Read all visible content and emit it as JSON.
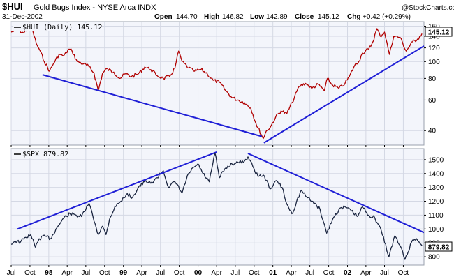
{
  "header": {
    "symbol": "$HUI",
    "name": "Gold Bugs Index - NYSE Arca INDX",
    "date": "31-Dec-2002",
    "copyright": "@StockCharts.com",
    "quote": {
      "open_label": "Open",
      "open": "144.70",
      "high_label": "High",
      "high": "146.82",
      "low_label": "Low",
      "low": "142.89",
      "close_label": "Close",
      "close": "145.12",
      "chg_label": "Chg",
      "chg": "+0.42 (+0.29%)"
    }
  },
  "colors": {
    "background": "#ffffff",
    "plot_bg": "#f3f5fb",
    "grid": "#d4d8e4",
    "hui_line": "#b00000",
    "spx_line": "#1a2540",
    "trendline": "#1f1fd6"
  },
  "chart_data": [
    {
      "type": "line",
      "panel": "top",
      "legend": "$HUI (Daily) 145.12",
      "last_value_label": "145.12",
      "y_scale": "log",
      "ylim": [
        33,
        170
      ],
      "y_ticks": [
        40,
        60,
        80,
        100,
        120,
        140,
        160
      ],
      "x_range": [
        "1997-07-01",
        "2003-01-10"
      ],
      "series": [
        {
          "values": [
            [
              "1997-07-01",
              148
            ],
            [
              "1997-08-01",
              152
            ],
            [
              "1997-09-01",
              146
            ],
            [
              "1997-09-20",
              155
            ],
            [
              "1997-10-15",
              150
            ],
            [
              "1997-11-01",
              127
            ],
            [
              "1997-11-20",
              115
            ],
            [
              "1997-12-10",
              100
            ],
            [
              "1998-01-05",
              88
            ],
            [
              "1998-01-25",
              98
            ],
            [
              "1998-02-20",
              110
            ],
            [
              "1998-03-15",
              108
            ],
            [
              "1998-04-10",
              118
            ],
            [
              "1998-04-25",
              115
            ],
            [
              "1998-05-20",
              100
            ],
            [
              "1998-06-20",
              97
            ],
            [
              "1998-07-15",
              94
            ],
            [
              "1998-08-10",
              86
            ],
            [
              "1998-08-31",
              68
            ],
            [
              "1998-09-20",
              85
            ],
            [
              "1998-10-10",
              91
            ],
            [
              "1998-11-15",
              87
            ],
            [
              "1998-12-15",
              80
            ],
            [
              "1999-01-10",
              85
            ],
            [
              "1999-02-10",
              82
            ],
            [
              "1999-03-15",
              85
            ],
            [
              "1999-04-15",
              93
            ],
            [
              "1999-05-15",
              90
            ],
            [
              "1999-06-15",
              83
            ],
            [
              "1999-07-15",
              80
            ],
            [
              "1999-08-15",
              82
            ],
            [
              "1999-09-10",
              92
            ],
            [
              "1999-09-28",
              115
            ],
            [
              "1999-10-15",
              100
            ],
            [
              "1999-11-15",
              92
            ],
            [
              "1999-12-15",
              88
            ],
            [
              "2000-01-15",
              90
            ],
            [
              "2000-02-15",
              85
            ],
            [
              "2000-03-15",
              78
            ],
            [
              "2000-04-15",
              76
            ],
            [
              "2000-05-15",
              68
            ],
            [
              "2000-06-15",
              62
            ],
            [
              "2000-07-15",
              60
            ],
            [
              "2000-08-15",
              58
            ],
            [
              "2000-09-15",
              54
            ],
            [
              "2000-10-10",
              44
            ],
            [
              "2000-11-05",
              38
            ],
            [
              "2000-11-15",
              36
            ],
            [
              "2000-12-01",
              40
            ],
            [
              "2000-12-20",
              42
            ],
            [
              "2001-01-15",
              48
            ],
            [
              "2001-02-10",
              52
            ],
            [
              "2001-03-10",
              50
            ],
            [
              "2001-04-05",
              58
            ],
            [
              "2001-05-10",
              72
            ],
            [
              "2001-06-10",
              75
            ],
            [
              "2001-07-10",
              70
            ],
            [
              "2001-08-10",
              74
            ],
            [
              "2001-09-10",
              68
            ],
            [
              "2001-09-25",
              80
            ],
            [
              "2001-10-15",
              74
            ],
            [
              "2001-11-20",
              70
            ],
            [
              "2001-12-20",
              75
            ],
            [
              "2002-01-10",
              82
            ],
            [
              "2002-02-05",
              95
            ],
            [
              "2002-02-25",
              100
            ],
            [
              "2002-03-15",
              112
            ],
            [
              "2002-04-15",
              118
            ],
            [
              "2002-05-05",
              130
            ],
            [
              "2002-05-25",
              155
            ],
            [
              "2002-06-10",
              140
            ],
            [
              "2002-07-01",
              148
            ],
            [
              "2002-07-25",
              110
            ],
            [
              "2002-08-15",
              140
            ],
            [
              "2002-09-15",
              138
            ],
            [
              "2002-10-15",
              115
            ],
            [
              "2002-11-15",
              130
            ],
            [
              "2002-12-10",
              135
            ],
            [
              "2002-12-31",
              145
            ]
          ]
        }
      ],
      "trendlines": [
        {
          "from": [
            "1997-12-01",
            84
          ],
          "to": [
            "2000-11-08",
            37
          ]
        },
        {
          "from": [
            "2000-11-18",
            34
          ],
          "to": [
            "2003-01-10",
            123
          ]
        }
      ]
    },
    {
      "type": "line",
      "panel": "bottom",
      "legend": "$SPX 879.82",
      "last_value_label": "879.82",
      "y_scale": "linear",
      "ylim": [
        740,
        1580
      ],
      "y_ticks": [
        800,
        900,
        1000,
        1100,
        1200,
        1300,
        1400,
        1500
      ],
      "x_range": [
        "1997-07-01",
        "2003-01-10"
      ],
      "x_ticks": [
        "Jul",
        "Oct",
        "98",
        "Apr",
        "Jul",
        "Oct",
        "99",
        "Apr",
        "Jul",
        "Oct",
        "00",
        "Apr",
        "Jul",
        "Oct",
        "01",
        "Apr",
        "Jul",
        "Oct",
        "02",
        "Apr",
        "Jul",
        "Oct"
      ],
      "series": [
        {
          "values": [
            [
              "1997-07-01",
              890
            ],
            [
              "1997-07-20",
              915
            ],
            [
              "1997-08-15",
              905
            ],
            [
              "1997-09-10",
              940
            ],
            [
              "1997-10-05",
              960
            ],
            [
              "1997-10-27",
              870
            ],
            [
              "1997-11-15",
              930
            ],
            [
              "1997-12-15",
              950
            ],
            [
              "1998-01-09",
              930
            ],
            [
              "1998-02-10",
              1010
            ],
            [
              "1998-03-15",
              1080
            ],
            [
              "1998-04-15",
              1110
            ],
            [
              "1998-05-15",
              1100
            ],
            [
              "1998-06-10",
              1090
            ],
            [
              "1998-07-17",
              1185
            ],
            [
              "1998-08-05",
              1090
            ],
            [
              "1998-08-31",
              960
            ],
            [
              "1998-09-20",
              1020
            ],
            [
              "1998-10-08",
              960
            ],
            [
              "1998-10-25",
              1070
            ],
            [
              "1998-11-20",
              1160
            ],
            [
              "1998-12-20",
              1200
            ],
            [
              "1999-01-15",
              1250
            ],
            [
              "1999-02-15",
              1230
            ],
            [
              "1999-03-15",
              1300
            ],
            [
              "1999-04-15",
              1340
            ],
            [
              "1999-05-15",
              1330
            ],
            [
              "1999-06-15",
              1370
            ],
            [
              "1999-07-15",
              1420
            ],
            [
              "1999-08-10",
              1300
            ],
            [
              "1999-09-10",
              1340
            ],
            [
              "1999-10-15",
              1260
            ],
            [
              "1999-11-15",
              1400
            ],
            [
              "1999-12-31",
              1470
            ],
            [
              "2000-01-25",
              1400
            ],
            [
              "2000-02-25",
              1340
            ],
            [
              "2000-03-24",
              1550
            ],
            [
              "2000-04-14",
              1370
            ],
            [
              "2000-05-15",
              1440
            ],
            [
              "2000-06-15",
              1470
            ],
            [
              "2000-07-15",
              1480
            ],
            [
              "2000-08-15",
              1490
            ],
            [
              "2000-09-01",
              1520
            ],
            [
              "2000-09-25",
              1450
            ],
            [
              "2000-10-20",
              1380
            ],
            [
              "2000-11-15",
              1390
            ],
            [
              "2000-12-20",
              1290
            ],
            [
              "2001-01-20",
              1350
            ],
            [
              "2001-02-15",
              1300
            ],
            [
              "2001-03-10",
              1180
            ],
            [
              "2001-04-04",
              1110
            ],
            [
              "2001-05-20",
              1280
            ],
            [
              "2001-06-15",
              1230
            ],
            [
              "2001-07-15",
              1200
            ],
            [
              "2001-08-20",
              1140
            ],
            [
              "2001-09-21",
              970
            ],
            [
              "2001-10-20",
              1070
            ],
            [
              "2001-11-20",
              1140
            ],
            [
              "2001-12-20",
              1160
            ],
            [
              "2002-01-20",
              1130
            ],
            [
              "2002-02-20",
              1090
            ],
            [
              "2002-03-15",
              1160
            ],
            [
              "2002-04-15",
              1100
            ],
            [
              "2002-05-15",
              1080
            ],
            [
              "2002-06-15",
              990
            ],
            [
              "2002-07-23",
              800
            ],
            [
              "2002-08-20",
              950
            ],
            [
              "2002-09-15",
              880
            ],
            [
              "2002-10-09",
              780
            ],
            [
              "2002-11-15",
              920
            ],
            [
              "2002-12-05",
              930
            ],
            [
              "2002-12-31",
              880
            ]
          ]
        }
      ],
      "trendlines": [
        {
          "from": [
            "1997-08-01",
            1000
          ],
          "to": [
            "2000-04-01",
            1555
          ]
        },
        {
          "from": [
            "2000-09-01",
            1545
          ],
          "to": [
            "2003-01-10",
            975
          ]
        }
      ]
    }
  ]
}
